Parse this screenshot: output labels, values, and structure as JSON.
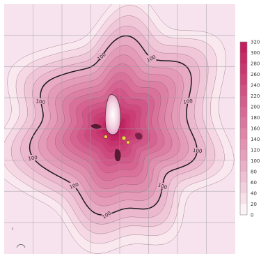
{
  "chart_data": {
    "type": "heatmap",
    "title": "",
    "xlabel": "",
    "ylabel": "",
    "grid": true,
    "colorbar": {
      "placement": "right",
      "min": 0,
      "max": 320,
      "ticks": [
        "0",
        "20",
        "40",
        "60",
        "80",
        "100",
        "120",
        "140",
        "160",
        "180",
        "200",
        "220",
        "240",
        "260",
        "280",
        "300",
        "320"
      ],
      "low_color": "#ffffff",
      "high_color": "#c2185b"
    },
    "contour_levels": [
      20,
      40,
      60,
      80,
      100,
      120,
      140,
      160,
      180,
      200,
      220,
      240,
      260,
      280,
      300,
      320
    ],
    "labeled_contour": {
      "value": 100,
      "labels": [
        "100",
        "100",
        "100",
        "100",
        "100",
        "100",
        "100",
        "100",
        "100"
      ]
    },
    "max_level": 320,
    "colors": {
      "background": "#f7e3ee",
      "contour_line": "#1a1a1a",
      "grid_line": "#9a9aa0",
      "center_highlight": "#ffffff"
    }
  }
}
